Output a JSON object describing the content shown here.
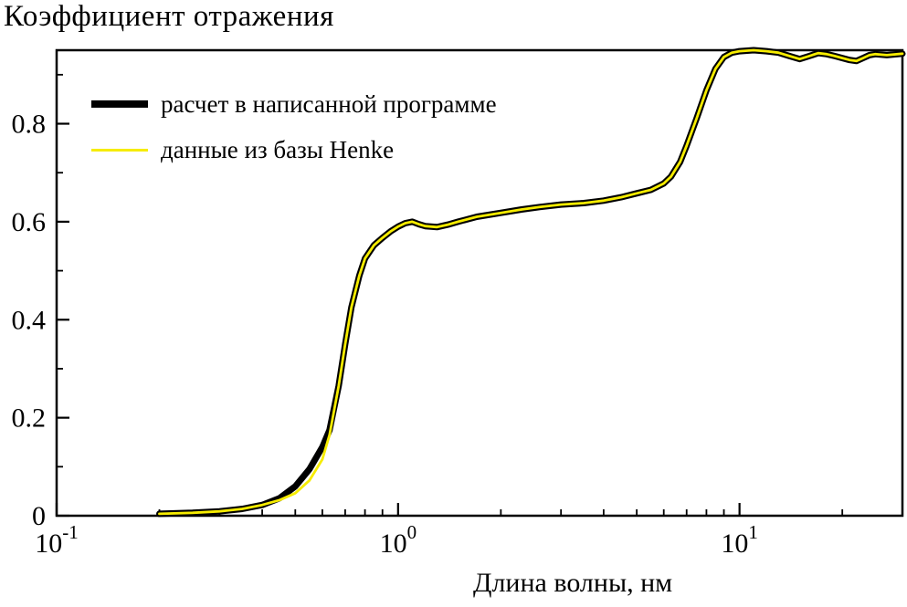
{
  "title": "Коэффициент отражения",
  "xlabel": "Длина волны, нм",
  "legend": [
    {
      "label": "расчет в написанной программе",
      "color": "#000000",
      "thickness": 8
    },
    {
      "label": "данные из базы Henke",
      "color": "#f6ec00",
      "thickness": 3
    }
  ],
  "chart_data": {
    "type": "line",
    "title": "Коэффициент отражения",
    "xlabel": "Длина волны, нм",
    "ylabel": "",
    "xscale": "log",
    "xlim": [
      0.1,
      30
    ],
    "ylim": [
      0,
      0.95
    ],
    "grid": false,
    "legend_position": "upper-left-inside",
    "x_ticks": [
      {
        "value": 0.1,
        "base": "10",
        "exp": "-1"
      },
      {
        "value": 1,
        "base": "10",
        "exp": "0"
      },
      {
        "value": 10,
        "base": "10",
        "exp": "1"
      }
    ],
    "x_minor_ticks": [
      0.2,
      0.3,
      0.4,
      0.5,
      0.6,
      0.7,
      0.8,
      0.9,
      2,
      3,
      4,
      5,
      6,
      7,
      8,
      9,
      20,
      30
    ],
    "y_ticks": [
      {
        "value": 0,
        "label": "0"
      },
      {
        "value": 0.2,
        "label": "0.2"
      },
      {
        "value": 0.4,
        "label": "0.4"
      },
      {
        "value": 0.6,
        "label": "0.6"
      },
      {
        "value": 0.8,
        "label": "0.8"
      }
    ],
    "y_minor_ticks": [
      0.1,
      0.3,
      0.5,
      0.7,
      0.9
    ],
    "x": [
      0.2,
      0.25,
      0.3,
      0.35,
      0.4,
      0.45,
      0.5,
      0.55,
      0.6,
      0.63,
      0.67,
      0.7,
      0.73,
      0.77,
      0.8,
      0.85,
      0.9,
      0.95,
      1.0,
      1.05,
      1.1,
      1.15,
      1.2,
      1.3,
      1.4,
      1.5,
      1.7,
      2.0,
      2.3,
      2.6,
      3.0,
      3.5,
      4.0,
      4.5,
      5.0,
      5.5,
      6.0,
      6.3,
      6.7,
      7.0,
      7.5,
      8.0,
      8.5,
      9.0,
      9.5,
      10,
      11,
      12,
      13,
      14,
      15,
      16,
      17,
      18,
      19,
      20,
      21,
      22,
      23,
      24,
      25,
      27,
      30
    ],
    "series": [
      {
        "name": "расчет в написанной программе",
        "color": "#000000",
        "width": 7,
        "values": [
          0.004,
          0.006,
          0.009,
          0.014,
          0.022,
          0.036,
          0.06,
          0.095,
          0.14,
          0.175,
          0.265,
          0.35,
          0.425,
          0.49,
          0.525,
          0.552,
          0.567,
          0.58,
          0.59,
          0.597,
          0.6,
          0.595,
          0.591,
          0.589,
          0.594,
          0.6,
          0.61,
          0.618,
          0.625,
          0.63,
          0.635,
          0.638,
          0.643,
          0.65,
          0.658,
          0.665,
          0.678,
          0.692,
          0.722,
          0.755,
          0.812,
          0.868,
          0.912,
          0.936,
          0.945,
          0.948,
          0.95,
          0.948,
          0.945,
          0.938,
          0.932,
          0.938,
          0.944,
          0.942,
          0.938,
          0.934,
          0.93,
          0.928,
          0.934,
          0.94,
          0.942,
          0.94,
          0.943
        ]
      },
      {
        "name": "данные из базы Henke",
        "color": "#f6ec00",
        "width": 2.8,
        "values": [
          0.004,
          0.006,
          0.009,
          0.014,
          0.022,
          0.032,
          0.046,
          0.072,
          0.115,
          0.165,
          0.265,
          0.35,
          0.425,
          0.49,
          0.525,
          0.552,
          0.567,
          0.58,
          0.59,
          0.597,
          0.6,
          0.595,
          0.591,
          0.589,
          0.594,
          0.6,
          0.61,
          0.618,
          0.625,
          0.63,
          0.635,
          0.638,
          0.643,
          0.65,
          0.658,
          0.665,
          0.678,
          0.692,
          0.722,
          0.755,
          0.812,
          0.868,
          0.912,
          0.936,
          0.945,
          0.948,
          0.95,
          0.948,
          0.945,
          0.938,
          0.932,
          0.938,
          0.944,
          0.942,
          0.938,
          0.934,
          0.93,
          0.928,
          0.934,
          0.94,
          0.942,
          0.94,
          0.943
        ]
      }
    ]
  }
}
